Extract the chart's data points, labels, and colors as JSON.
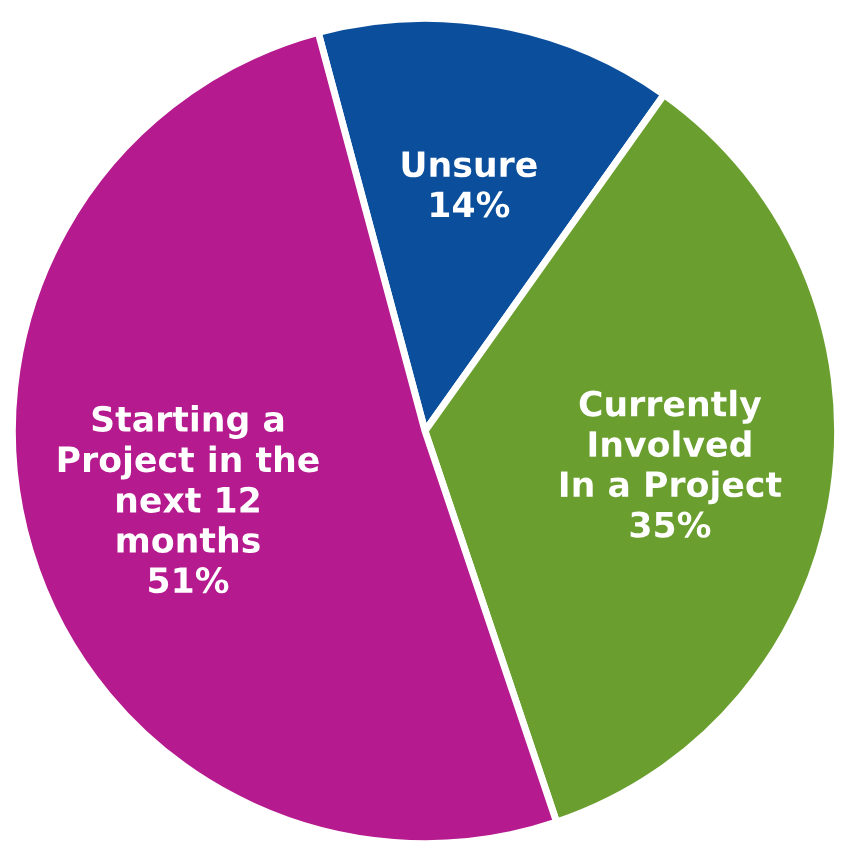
{
  "chart_data": {
    "type": "pie",
    "categories": [
      "Unsure",
      "Currently\nInvolved\nIn a Project",
      "Starting a\nProject in the\nnext 12\nmonths"
    ],
    "values": [
      14,
      35,
      51
    ],
    "colors": [
      "#0b4f9c",
      "#6a9f2f",
      "#b51a8e"
    ],
    "value_labels": [
      "14%",
      "35%",
      "51%"
    ]
  }
}
